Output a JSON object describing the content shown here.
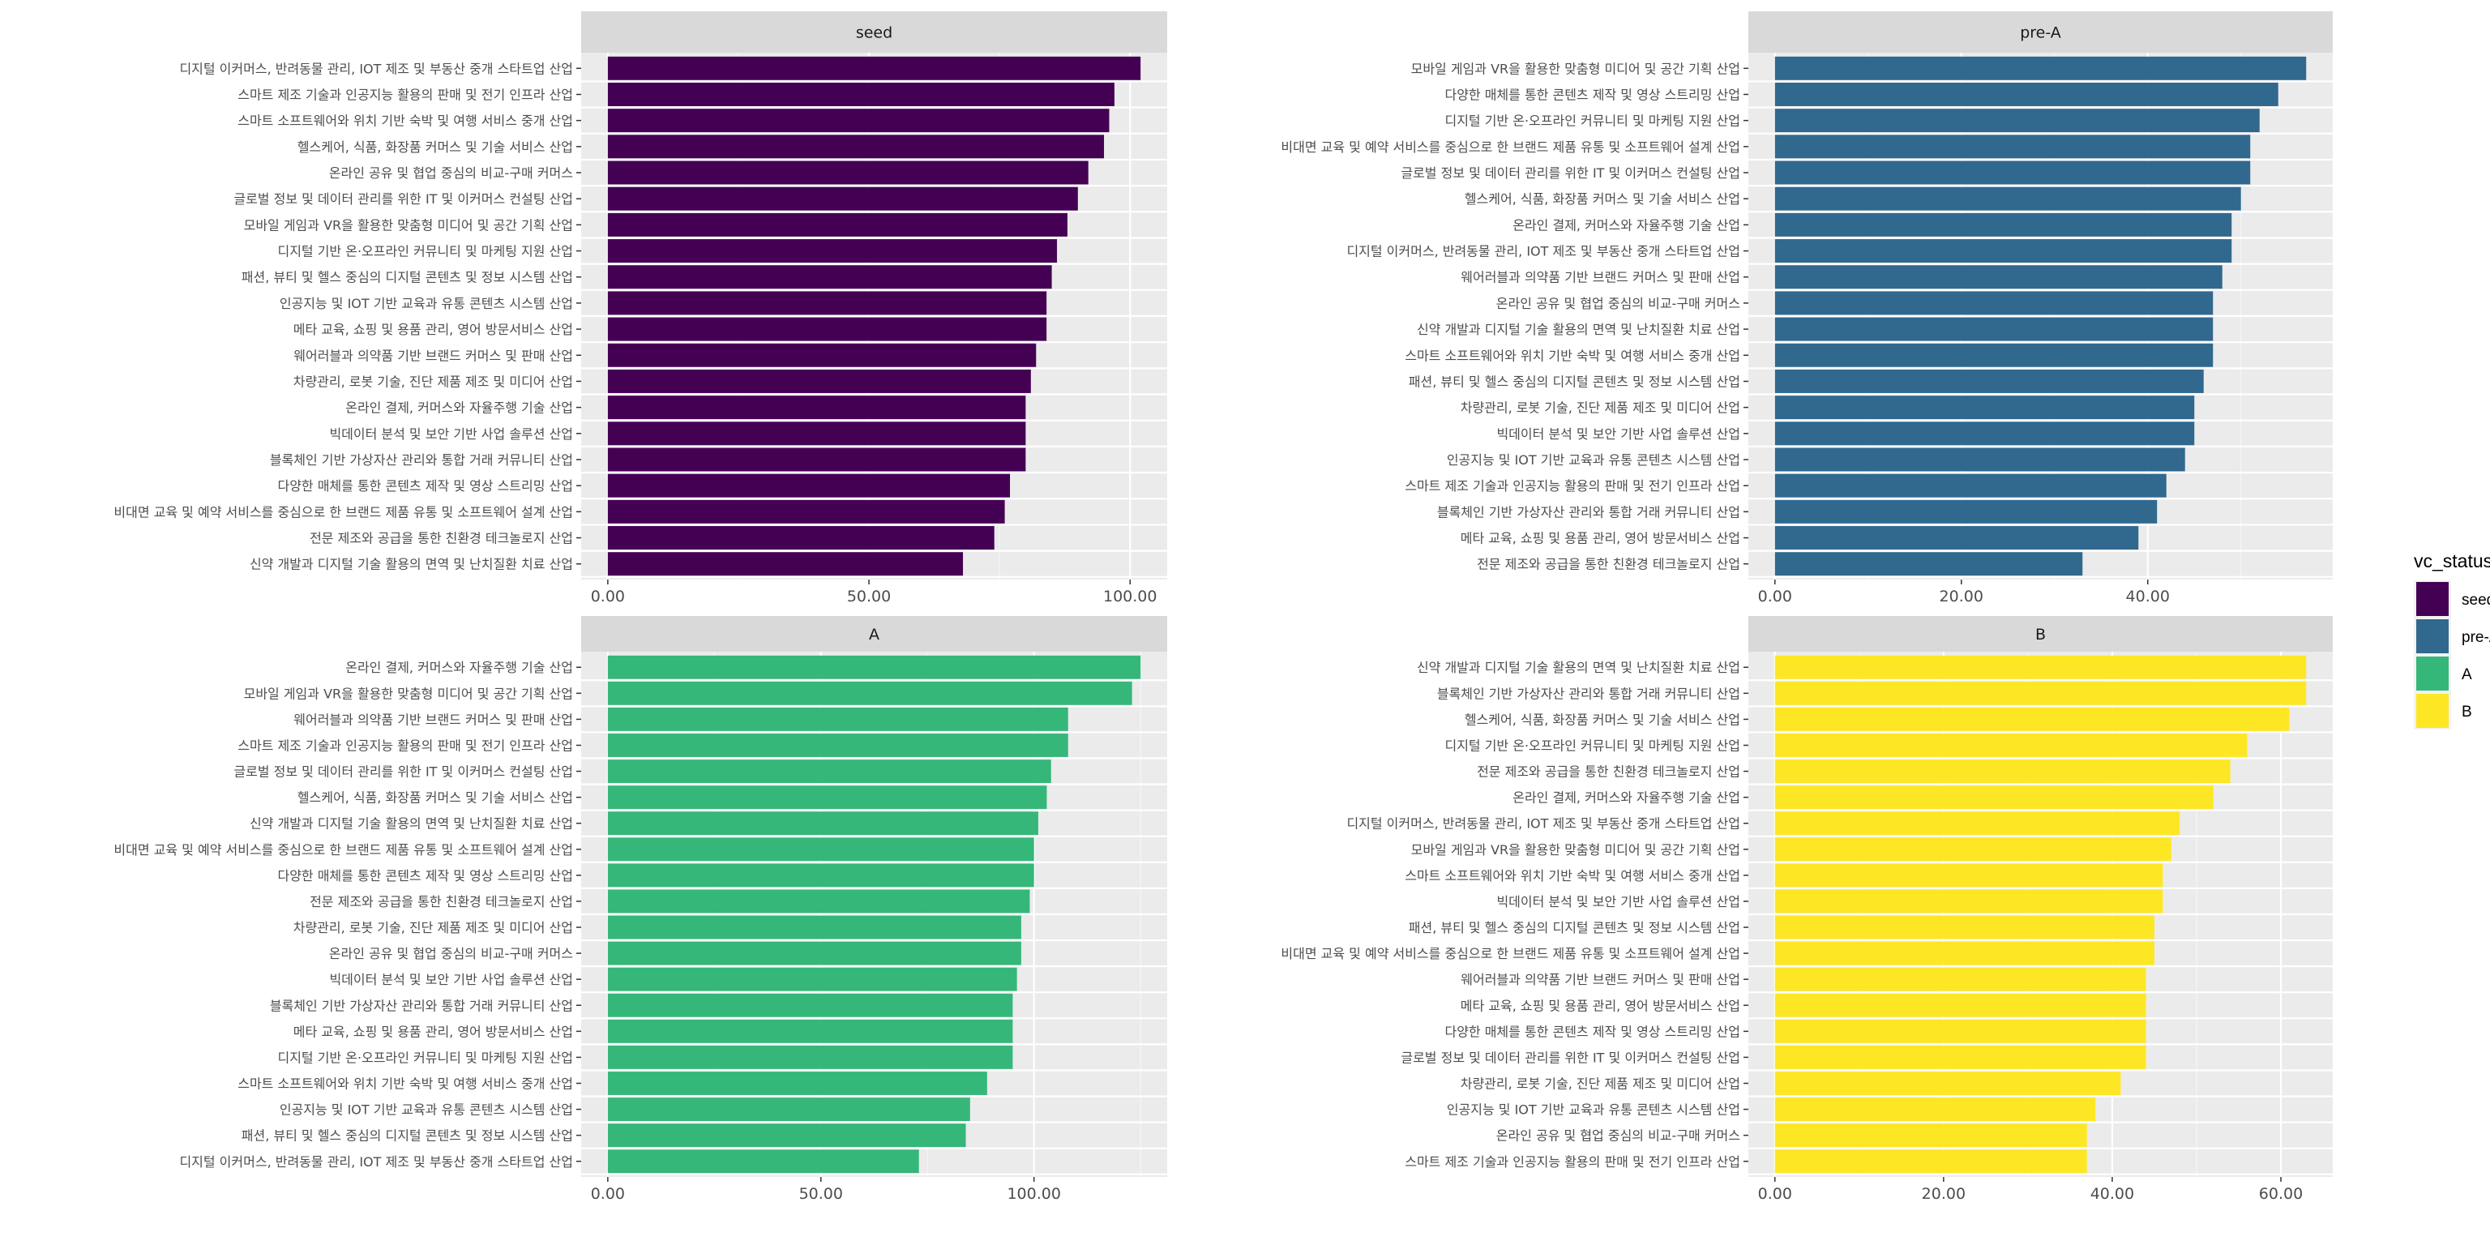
{
  "chart_data": {
    "type": "bar",
    "orientation": "horizontal",
    "facet_variable": "vc_status",
    "categories": [
      "디지털 이커머스, 반려동물 관리, IOT 제조 및 부동산 중개 스타트업 산업",
      "스마트 제조 기술과 인공지능 활용의 판매 및 전기 인프라 산업",
      "스마트 소프트웨어와 위치 기반 숙박 및 여행 서비스 중개 산업",
      "헬스케어, 식품, 화장품 커머스 및 기술 서비스 산업",
      "온라인 공유 및 협업 중심의 비교-구매 커머스",
      "글로벌 정보 및 데이터 관리를 위한 IT 및 이커머스 컨설팅 산업",
      "모바일 게임과 VR을 활용한 맞춤형 미디어 및 공간 기획 산업",
      "디지털 기반 온·오프라인 커뮤니티 및 마케팅 지원 산업",
      "패션, 뷰티 및 헬스 중심의 디지털 콘텐츠 및 정보 시스템 산업",
      "인공지능 및 IOT 기반 교육과 유통 콘텐츠 시스템 산업",
      "메타 교육, 쇼핑 및 용품 관리, 영어 방문서비스 산업",
      "웨어러블과 의약품 기반 브랜드 커머스 및 판매 산업",
      "차량관리, 로봇 기술, 진단 제품 제조 및 미디어 산업",
      "온라인 결제, 커머스와 자율주행 기술 산업",
      "빅데이터 분석 및 보안 기반 사업 솔루션 산업",
      "블록체인 기반 가상자산 관리와 통합 거래 커뮤니티 산업",
      "다양한 매체를 통한 콘텐츠 제작 및 영상 스트리밍 산업",
      "비대면 교육 및 예약 서비스를 중심으로 한 브랜드 제품 유통 및 소프트웨어 설계 산업",
      "전문 제조와 공급을 통한 친환경 테크놀로지 산업",
      "신약 개발과 디지털 기술 활용의 면역 및 난치질환 치료 산업"
    ],
    "panels": [
      {
        "name": "seed",
        "color": "#440154",
        "category_index": [
          0,
          1,
          2,
          3,
          4,
          5,
          6,
          7,
          8,
          9,
          10,
          11,
          12,
          13,
          14,
          15,
          16,
          17,
          18,
          19
        ],
        "values": [
          102,
          97,
          96,
          95,
          92,
          90,
          88,
          86,
          85,
          84,
          84,
          82,
          81,
          80,
          80,
          80,
          77,
          76,
          74,
          68
        ],
        "ticks": [
          0,
          50,
          100
        ],
        "tick_labels": [
          "0.00",
          "50.00",
          "100.00"
        ],
        "minor": [
          25,
          75
        ]
      },
      {
        "name": "pre-A",
        "color": "#31688E",
        "category_index": [
          6,
          16,
          7,
          17,
          5,
          3,
          13,
          0,
          11,
          4,
          19,
          2,
          8,
          12,
          14,
          9,
          1,
          15,
          10,
          18
        ],
        "values": [
          57,
          54,
          52,
          51,
          51,
          50,
          49,
          49,
          48,
          47,
          47,
          47,
          46,
          45,
          45,
          44,
          42,
          41,
          39,
          33
        ],
        "ticks": [
          0,
          20,
          40
        ],
        "tick_labels": [
          "0.00",
          "20.00",
          "40.00"
        ],
        "minor": [
          10,
          30,
          50
        ]
      },
      {
        "name": "A",
        "color": "#35B779",
        "category_index": [
          13,
          6,
          11,
          1,
          5,
          3,
          19,
          17,
          16,
          18,
          12,
          4,
          14,
          15,
          10,
          7,
          2,
          9,
          8,
          0
        ],
        "values": [
          125,
          123,
          108,
          108,
          104,
          103,
          101,
          100,
          100,
          99,
          97,
          97,
          96,
          95,
          95,
          95,
          89,
          85,
          84,
          73
        ],
        "ticks": [
          0,
          50,
          100
        ],
        "tick_labels": [
          "0.00",
          "50.00",
          "100.00"
        ],
        "minor": [
          25,
          75,
          125
        ]
      },
      {
        "name": "B",
        "color": "#FDE725",
        "category_index": [
          19,
          15,
          3,
          7,
          18,
          13,
          0,
          6,
          2,
          14,
          8,
          17,
          11,
          10,
          16,
          5,
          12,
          9,
          4,
          1
        ],
        "values": [
          63,
          63,
          61,
          56,
          54,
          52,
          48,
          47,
          46,
          46,
          45,
          45,
          44,
          44,
          44,
          44,
          41,
          38,
          37,
          37
        ],
        "ticks": [
          0,
          20,
          40,
          60
        ],
        "tick_labels": [
          "0.00",
          "20.00",
          "40.00",
          "60.00"
        ],
        "minor": [
          10,
          30,
          50
        ]
      }
    ],
    "xlabel": "",
    "ylabel": "",
    "legend": {
      "title": "vc_status",
      "position": "right",
      "entries": [
        "seed",
        "pre-A",
        "A",
        "B"
      ]
    }
  }
}
